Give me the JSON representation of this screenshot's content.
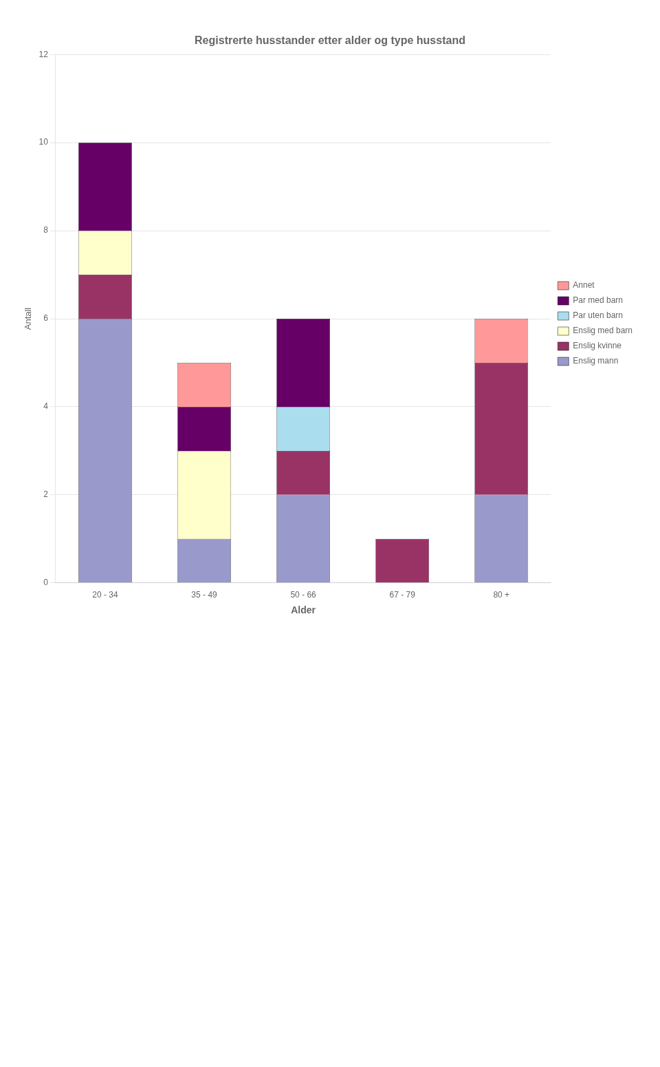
{
  "chart_data": {
    "type": "bar",
    "stacked": true,
    "title": "Registrerte husstander etter alder og type husstand",
    "xlabel": "Alder",
    "ylabel": "Antall",
    "categories": [
      "20 - 34",
      "35 - 49",
      "50 - 66",
      "67 - 79",
      "80 +"
    ],
    "series": [
      {
        "name": "Enslig mann",
        "color": "#9999cc",
        "values": [
          6,
          1,
          2,
          0,
          2
        ]
      },
      {
        "name": "Enslig kvinne",
        "color": "#993366",
        "values": [
          1,
          0,
          1,
          1,
          3
        ]
      },
      {
        "name": "Enslig med barn",
        "color": "#ffffcc",
        "values": [
          1,
          2,
          0,
          0,
          0
        ]
      },
      {
        "name": "Par uten barn",
        "color": "#aaddee",
        "values": [
          0,
          0,
          1,
          0,
          0
        ]
      },
      {
        "name": "Par med barn",
        "color": "#660066",
        "values": [
          2,
          1,
          2,
          0,
          0
        ]
      },
      {
        "name": "Annet",
        "color": "#ff9999",
        "values": [
          0,
          1,
          0,
          0,
          1
        ]
      }
    ],
    "ylim": [
      0,
      12
    ],
    "yticks": [
      0,
      2,
      4,
      6,
      8,
      10,
      12
    ],
    "grid": true,
    "legend": "right"
  }
}
